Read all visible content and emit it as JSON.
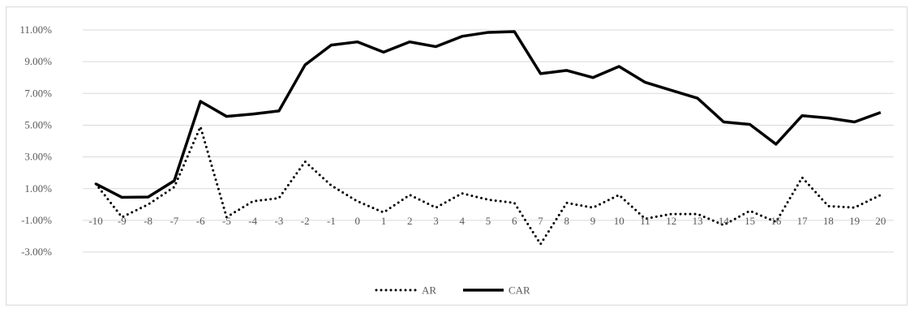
{
  "chart_data": {
    "type": "line",
    "title": "",
    "xlabel": "",
    "ylabel": "",
    "ylim": [
      -0.05,
      0.12
    ],
    "y_ticks": [
      -0.03,
      -0.01,
      0.01,
      0.03,
      0.05,
      0.07,
      0.09,
      0.11
    ],
    "y_tick_labels": [
      "-3.00%",
      "-1.00%",
      "1.00%",
      "3.00%",
      "5.00%",
      "7.00%",
      "9.00%",
      "11.00%"
    ],
    "x": [
      "-10",
      "-9",
      "-8",
      "-7",
      "-6",
      "-5",
      "-4",
      "-3",
      "-2",
      "-1",
      "0",
      "1",
      "2",
      "3",
      "4",
      "5",
      "6",
      "7",
      "8",
      "9",
      "10",
      "11",
      "12",
      "13",
      "14",
      "15",
      "16",
      "17",
      "18",
      "19",
      "20"
    ],
    "grid": "horizontal",
    "legend_position": "bottom",
    "series": [
      {
        "name": "AR",
        "style": "dotted",
        "color": "#000000",
        "values": [
          0.013,
          -0.008,
          0.0,
          0.011,
          0.049,
          -0.008,
          0.002,
          0.004,
          0.027,
          0.012,
          0.002,
          -0.005,
          0.006,
          -0.002,
          0.007,
          0.003,
          0.001,
          -0.025,
          0.001,
          -0.002,
          0.006,
          -0.009,
          -0.006,
          -0.006,
          -0.013,
          -0.004,
          -0.011,
          0.017,
          -0.001,
          -0.002,
          0.006
        ]
      },
      {
        "name": "CAR",
        "style": "solid",
        "color": "#000000",
        "values": [
          0.013,
          0.0045,
          0.0047,
          0.015,
          0.065,
          0.0555,
          0.057,
          0.059,
          0.088,
          0.1005,
          0.1025,
          0.096,
          0.1025,
          0.0995,
          0.106,
          0.1085,
          0.109,
          0.0825,
          0.0845,
          0.08,
          0.087,
          0.077,
          0.072,
          0.067,
          0.052,
          0.0505,
          0.038,
          0.056,
          0.0545,
          0.052,
          0.058
        ]
      }
    ]
  }
}
